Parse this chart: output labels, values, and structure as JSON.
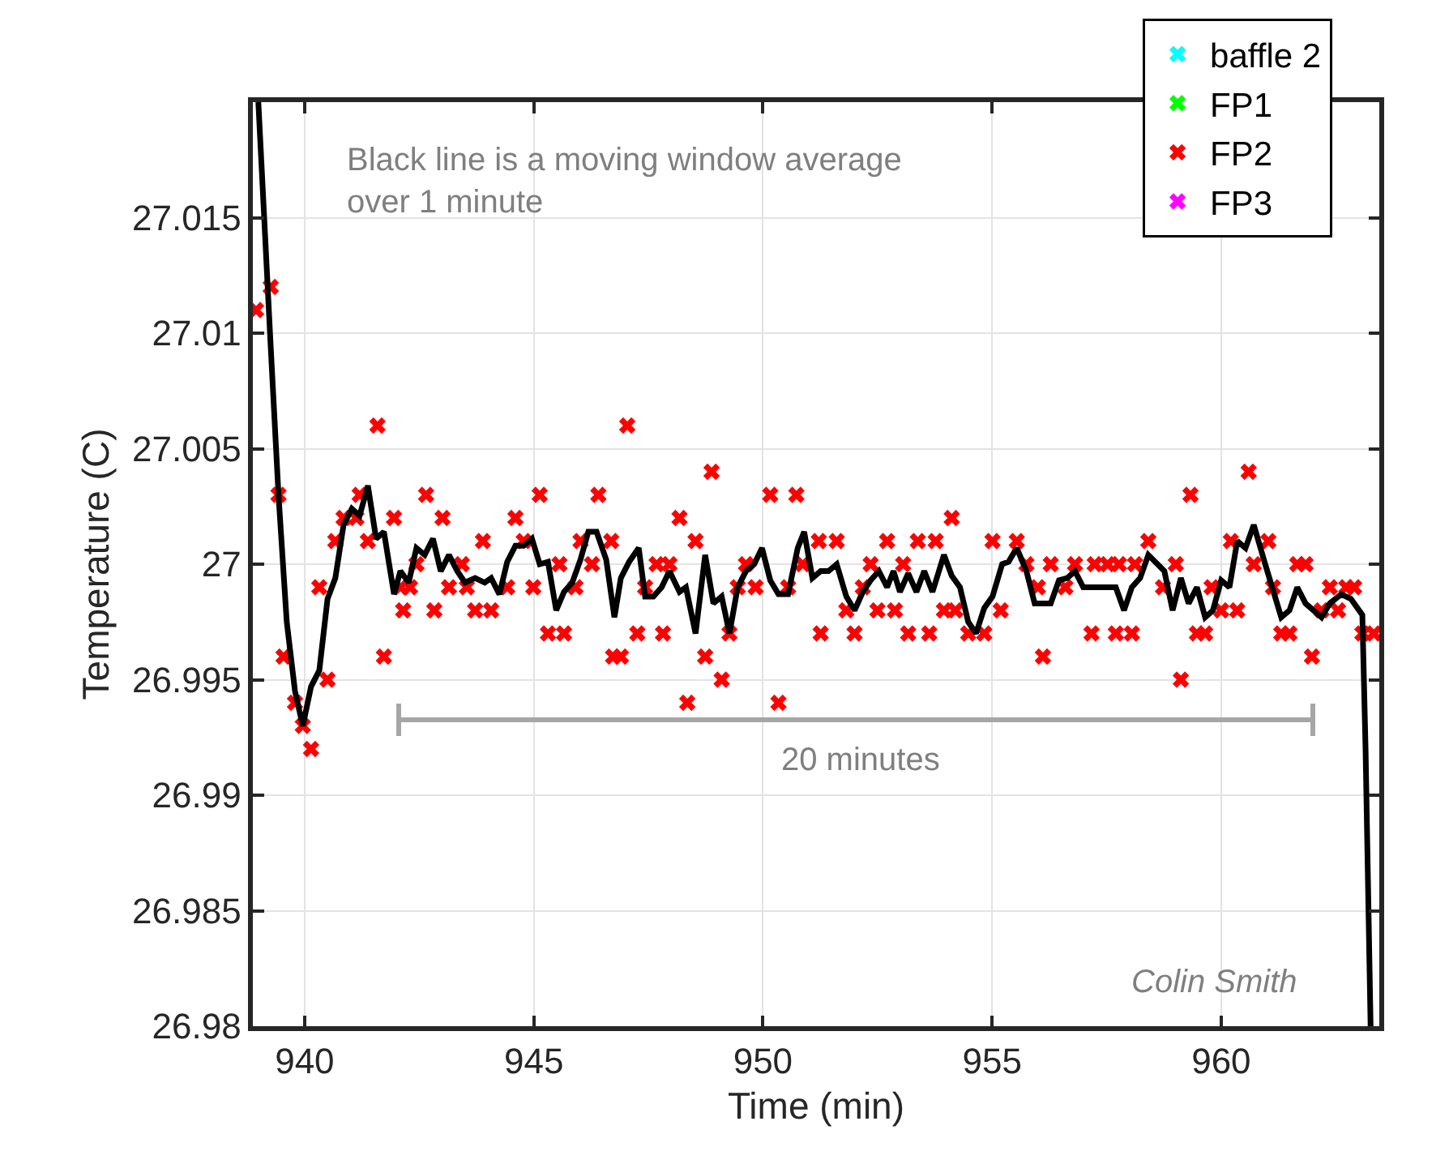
{
  "chart_data": {
    "type": "scatter",
    "xlabel": "Time (min)",
    "ylabel": "Temperature (C)",
    "xlim": [
      938.87,
      963.45
    ],
    "ylim": [
      26.98,
      27.02
    ],
    "xticks": [
      940,
      945,
      950,
      955,
      960
    ],
    "yticks": [
      26.98,
      26.985,
      26.99,
      26.995,
      27,
      27.005,
      27.01,
      27.015
    ],
    "grid": true,
    "legend": "top right",
    "marker": "cross",
    "annotations": [
      "Black line is a moving window average over 1 minute",
      "20 minutes",
      "Colin Smith"
    ],
    "series": [
      {
        "name": "baffle 2",
        "color": "#00ffff"
      },
      {
        "name": "FP1",
        "color": "#00ff00"
      },
      {
        "name": "FP2",
        "color": "#ff0000",
        "x": [
          938.94,
          939.26,
          939.43,
          939.54,
          939.79,
          939.96,
          940.14,
          940.32,
          940.5,
          940.67,
          940.85,
          941.13,
          941.2,
          941.38,
          941.59,
          941.73,
          941.95,
          942.09,
          942.15,
          942.3,
          942.44,
          942.65,
          942.83,
          943.01,
          943.15,
          943.43,
          943.54,
          943.72,
          943.89,
          944.07,
          944.42,
          944.6,
          944.78,
          944.99,
          945.13,
          945.31,
          945.56,
          945.66,
          945.91,
          946.02,
          946.27,
          946.41,
          946.69,
          946.73,
          946.9,
          947.04,
          947.26,
          947.43,
          947.68,
          947.82,
          947.96,
          948.18,
          948.35,
          948.53,
          948.74,
          948.88,
          949.1,
          949.27,
          949.45,
          949.63,
          949.84,
          950.16,
          950.34,
          950.55,
          950.73,
          950.87,
          951.22,
          951.26,
          951.61,
          951.82,
          952.0,
          952.18,
          952.35,
          952.5,
          952.71,
          952.88,
          953.06,
          953.17,
          953.38,
          953.63,
          953.77,
          953.95,
          954.12,
          954.2,
          954.48,
          954.83,
          955.01,
          955.19,
          955.54,
          955.75,
          956.0,
          956.11,
          956.28,
          956.6,
          956.81,
          957.17,
          957.24,
          957.52,
          957.7,
          957.77,
          958.05,
          958.12,
          958.41,
          958.73,
          959.01,
          959.12,
          959.33,
          959.47,
          959.65,
          959.79,
          960.0,
          960.21,
          960.35,
          960.6,
          960.71,
          961.03,
          961.13,
          961.31,
          961.49,
          961.66,
          961.84,
          961.98,
          962.19,
          962.37,
          962.55,
          962.73,
          962.9,
          963.08,
          963.33
        ],
        "values": [
          27.011,
          27.012,
          27.003,
          26.996,
          26.994,
          26.993,
          26.992,
          26.999,
          26.995,
          27.001,
          27.002,
          27.002,
          27.003,
          27.001,
          27.006,
          26.996,
          27.002,
          26.999,
          26.998,
          26.999,
          27.0,
          27.003,
          26.998,
          27.002,
          26.999,
          27.0,
          26.999,
          26.998,
          27.001,
          26.998,
          26.999,
          27.002,
          27.001,
          26.999,
          27.003,
          26.997,
          27.0,
          26.997,
          26.999,
          27.001,
          27.0,
          27.003,
          27.001,
          26.996,
          26.996,
          27.006,
          26.997,
          26.999,
          27.0,
          26.997,
          27.0,
          27.002,
          26.994,
          27.001,
          26.996,
          27.004,
          26.995,
          26.997,
          26.999,
          27.0,
          26.999,
          27.003,
          26.994,
          26.999,
          27.003,
          27.0,
          27.001,
          26.997,
          27.001,
          26.998,
          26.997,
          26.999,
          27.0,
          26.998,
          27.001,
          26.998,
          27.0,
          26.997,
          27.001,
          26.997,
          27.001,
          26.998,
          27.002,
          26.998,
          26.997,
          26.997,
          27.001,
          26.998,
          27.001,
          27.0,
          26.999,
          26.996,
          27.0,
          26.999,
          27.0,
          26.997,
          27.0,
          27.0,
          26.997,
          27.0,
          26.997,
          27.0,
          27.001,
          26.999,
          27.0,
          26.995,
          27.003,
          26.997,
          26.997,
          26.999,
          26.998,
          27.001,
          26.998,
          27.004,
          27.0,
          27.001,
          26.999,
          26.997,
          26.997,
          27.0,
          27.0,
          26.996,
          26.998,
          26.999,
          26.998,
          26.999,
          26.999,
          26.997,
          26.997
        ]
      },
      {
        "name": "FP3",
        "color": "#ff00ff"
      },
      {
        "type": "line",
        "color": "#000000",
        "marker": "none",
        "line_style": "solid",
        "x": [
          938.99,
          939.26,
          939.43,
          939.61,
          939.79,
          939.96,
          940.14,
          940.32,
          940.5,
          940.67,
          940.85,
          941.03,
          941.2,
          941.38,
          941.56,
          941.73,
          941.95,
          942.09,
          942.27,
          942.44,
          942.62,
          942.8,
          942.97,
          943.15,
          943.33,
          943.5,
          943.72,
          943.93,
          944.07,
          944.25,
          944.42,
          944.6,
          944.78,
          944.96,
          945.13,
          945.31,
          945.49,
          945.66,
          945.84,
          946.02,
          946.19,
          946.37,
          946.58,
          946.76,
          946.9,
          947.08,
          947.29,
          947.43,
          947.61,
          947.79,
          947.96,
          948.18,
          948.32,
          948.53,
          948.74,
          948.92,
          949.1,
          949.27,
          949.45,
          949.63,
          949.81,
          949.98,
          950.16,
          950.34,
          950.55,
          950.76,
          950.9,
          951.08,
          951.26,
          951.43,
          951.61,
          951.82,
          952.0,
          952.18,
          952.35,
          952.53,
          952.71,
          952.85,
          952.99,
          953.17,
          953.35,
          953.52,
          953.7,
          953.95,
          954.12,
          954.3,
          954.48,
          954.65,
          954.83,
          955.01,
          955.22,
          955.36,
          955.54,
          955.75,
          955.93,
          956.28,
          956.46,
          956.64,
          956.81,
          956.99,
          957.7,
          957.88,
          958.05,
          958.23,
          958.41,
          958.76,
          958.94,
          959.12,
          959.29,
          959.47,
          959.65,
          959.82,
          960.0,
          960.18,
          960.35,
          960.53,
          960.71,
          960.96,
          961.31,
          961.49,
          961.66,
          961.84,
          962.19,
          962.37,
          962.62,
          962.83,
          963.08,
          963.15,
          963.26
        ],
        "values": [
          27.02,
          27.0094,
          27.003,
          26.9975,
          26.9945,
          26.993,
          26.9947,
          26.9954,
          26.9985,
          26.9994,
          27.0017,
          27.0024,
          27.0021,
          27.0034,
          27.0011,
          27.0014,
          26.9987,
          26.9997,
          26.9992,
          27.0007,
          27.0004,
          27.0011,
          26.9997,
          27.0004,
          26.9997,
          26.9992,
          26.9994,
          26.9992,
          26.9994,
          26.9987,
          27.0001,
          27.0008,
          27.0008,
          27.0011,
          27.0,
          27.0001,
          26.998,
          26.9988,
          26.9992,
          27.0002,
          27.0014,
          27.0014,
          27.0002,
          26.9977,
          26.9994,
          27.0001,
          27.0007,
          26.9986,
          26.9986,
          26.999,
          26.9997,
          26.9988,
          26.999,
          26.997,
          27.0004,
          26.9983,
          26.9986,
          26.997,
          26.999,
          26.9997,
          27.0,
          27.0007,
          26.9993,
          26.9987,
          26.9987,
          27.0007,
          27.0014,
          26.9994,
          26.9997,
          26.9997,
          27.0,
          26.9986,
          26.998,
          26.9988,
          26.9993,
          26.9997,
          26.999,
          26.9997,
          26.9988,
          26.9996,
          26.9988,
          26.9997,
          26.9988,
          27.0004,
          26.9995,
          26.999,
          26.9975,
          26.997,
          26.9981,
          26.9986,
          27.0,
          27.0001,
          27.0007,
          26.9997,
          26.9983,
          26.9983,
          26.9993,
          26.9994,
          26.9997,
          26.999,
          26.999,
          26.998,
          26.999,
          26.9994,
          27.0004,
          26.9997,
          26.998,
          26.9994,
          26.9983,
          26.999,
          26.9977,
          26.998,
          26.9993,
          26.999,
          27.001,
          27.0007,
          27.0017,
          27.0,
          26.9977,
          26.998,
          26.999,
          26.9983,
          26.9977,
          26.9983,
          26.9987,
          26.9985,
          26.9978,
          26.992,
          26.98
        ]
      }
    ]
  }
}
